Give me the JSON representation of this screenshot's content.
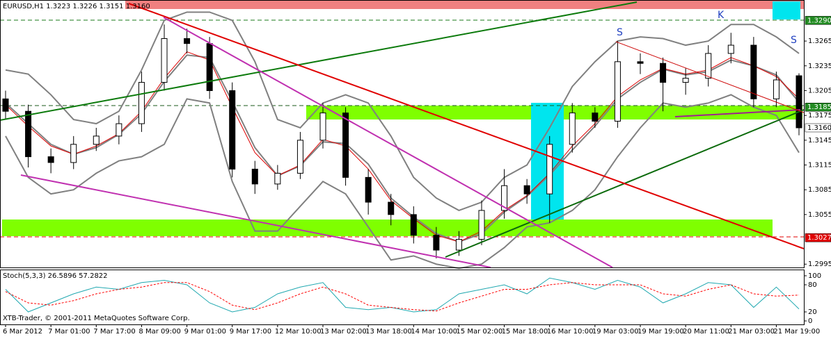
{
  "chart_data": {
    "type": "candlestick",
    "title": "EURUSD,H1  1.3223 1.3226 1.3151 1.3160",
    "categories": [
      "6 Mar 2012",
      null,
      "7 Mar 01:00",
      null,
      "7 Mar 17:00",
      null,
      "8 Mar 09:00",
      null,
      "9 Mar 01:00",
      null,
      "9 Mar 17:00",
      null,
      "12 Mar 10:00",
      null,
      "13 Mar 02:00",
      null,
      "13 Mar 18:00",
      null,
      "14 Mar 10:00",
      null,
      "15 Mar 02:00",
      null,
      "15 Mar 18:00",
      null,
      "16 Mar 10:00",
      null,
      "19 Mar 03:00",
      null,
      "19 Mar 19:00",
      null,
      "20 Mar 11:00",
      null,
      "21 Mar 03:00",
      null,
      "21 Mar 19:00",
      null
    ],
    "open": [
      1.3195,
      1.318,
      1.3125,
      1.3118,
      1.314,
      1.315,
      1.3165,
      1.3215,
      1.3268,
      1.3262,
      1.3205,
      1.311,
      1.3092,
      1.3105,
      1.3145,
      1.3178,
      1.31,
      1.307,
      1.3055,
      1.303,
      1.3012,
      1.3025,
      1.306,
      1.309,
      1.308,
      1.314,
      1.3178,
      1.3168,
      1.324,
      1.3238,
      1.3215,
      1.322,
      1.325,
      1.326,
      1.3195,
      1.3223
    ],
    "high": [
      1.3205,
      1.3188,
      1.3135,
      1.315,
      1.316,
      1.3175,
      1.3228,
      1.3285,
      1.328,
      1.327,
      1.3215,
      1.312,
      1.3115,
      1.3155,
      1.319,
      1.3185,
      1.311,
      1.308,
      1.3065,
      1.304,
      1.3035,
      1.3072,
      1.311,
      1.3098,
      1.315,
      1.319,
      1.3185,
      1.3265,
      1.325,
      1.3245,
      1.3232,
      1.326,
      1.3275,
      1.327,
      1.3228,
      1.3226
    ],
    "low": [
      1.317,
      1.3112,
      1.3105,
      1.311,
      1.3132,
      1.314,
      1.3155,
      1.3205,
      1.325,
      1.3195,
      1.31,
      1.308,
      1.3085,
      1.3098,
      1.3135,
      1.309,
      1.3055,
      1.3042,
      1.302,
      1.3002,
      1.3005,
      1.3018,
      1.305,
      1.3068,
      1.3045,
      1.313,
      1.316,
      1.316,
      1.3225,
      1.318,
      1.32,
      1.321,
      1.3238,
      1.3185,
      1.3185,
      1.3151
    ],
    "close": [
      1.318,
      1.3125,
      1.3118,
      1.314,
      1.315,
      1.3165,
      1.3215,
      1.3268,
      1.3262,
      1.3205,
      1.311,
      1.3092,
      1.3105,
      1.3145,
      1.3178,
      1.31,
      1.307,
      1.3055,
      1.303,
      1.3012,
      1.3025,
      1.306,
      1.309,
      1.308,
      1.314,
      1.3178,
      1.3168,
      1.324,
      1.3238,
      1.3215,
      1.322,
      1.325,
      1.326,
      1.3195,
      1.3218,
      1.316
    ],
    "series": [
      {
        "color": "#808080",
        "values": [
          1.323,
          1.3225,
          1.32,
          1.317,
          1.3165,
          1.318,
          1.323,
          1.329,
          1.33,
          1.33,
          1.329,
          1.324,
          1.317,
          1.316,
          1.319,
          1.32,
          1.319,
          1.315,
          1.31,
          1.3075,
          1.306,
          1.307,
          1.31,
          1.3115,
          1.316,
          1.321,
          1.324,
          1.3265,
          1.327,
          1.3268,
          1.326,
          1.3265,
          1.3285,
          1.3285,
          1.327,
          1.325
        ]
      },
      {
        "color": "#808080",
        "values": [
          1.319,
          1.3165,
          1.314,
          1.3128,
          1.3136,
          1.3152,
          1.3177,
          1.3216,
          1.3248,
          1.3245,
          1.3192,
          1.3136,
          1.3102,
          1.3114,
          1.3143,
          1.3141,
          1.3116,
          1.3075,
          1.3052,
          1.3032,
          1.3022,
          1.3032,
          1.3058,
          1.3077,
          1.3103,
          1.3133,
          1.3162,
          1.3195,
          1.3215,
          1.3231,
          1.3224,
          1.3228,
          1.3242,
          1.3235,
          1.3224,
          1.3191
        ]
      },
      {
        "color": "#808080",
        "values": [
          1.315,
          1.31,
          1.308,
          1.3085,
          1.3105,
          1.312,
          1.3125,
          1.314,
          1.3195,
          1.319,
          1.3095,
          1.3035,
          1.3035,
          1.3065,
          1.3095,
          1.308,
          1.304,
          1.3,
          1.3005,
          1.2995,
          1.299,
          1.2995,
          1.3015,
          1.304,
          1.3045,
          1.306,
          1.3085,
          1.3125,
          1.316,
          1.319,
          1.3185,
          1.319,
          1.32,
          1.3185,
          1.3175,
          1.313
        ]
      },
      {
        "color": "#dd0000",
        "values": [
          1.3188,
          1.3162,
          1.3138,
          1.3128,
          1.3138,
          1.3153,
          1.318,
          1.322,
          1.3252,
          1.3242,
          1.3185,
          1.313,
          1.3102,
          1.3115,
          1.3146,
          1.3138,
          1.311,
          1.3072,
          1.305,
          1.303,
          1.3022,
          1.3035,
          1.306,
          1.3078,
          1.3105,
          1.3138,
          1.3165,
          1.3198,
          1.3218,
          1.3232,
          1.3225,
          1.323,
          1.3245,
          1.3235,
          1.3222,
          1.3195
        ]
      }
    ],
    "ylim": [
      1.2991,
      1.3313
    ],
    "yticks": [
      1.3265,
      1.3235,
      1.3205,
      1.3175,
      1.3145,
      1.3115,
      1.3085,
      1.3055,
      1.2995
    ],
    "price_labels": [
      {
        "value": 1.329,
        "label": "1.3290",
        "color": "#228b22"
      },
      {
        "value": 1.3185,
        "label": "1.3185",
        "color": "#228b22"
      },
      {
        "value": 1.316,
        "label": "1.3160",
        "color": "#ffffff"
      },
      {
        "value": 1.3027,
        "label": "1.3027",
        "color": "#e00000"
      }
    ],
    "annotations": [
      "S",
      "K",
      "S"
    ],
    "footer": "XTB-Trader, © 2001-2011 MetaQuotes Software Corp.",
    "indicator": {
      "title": "Stoch(5,3,3) 26.5896 57.2822",
      "ylim": [
        0,
        100
      ],
      "yticks": [
        100,
        80,
        20,
        0
      ],
      "series": [
        {
          "color": "#20a8b0",
          "values": [
            70,
            20,
            40,
            60,
            75,
            70,
            85,
            90,
            80,
            40,
            20,
            30,
            60,
            75,
            85,
            30,
            25,
            30,
            20,
            25,
            60,
            70,
            80,
            60,
            95,
            85,
            70,
            90,
            75,
            40,
            60,
            85,
            80,
            30,
            75,
            26.5896
          ]
        },
        {
          "color": "#ff0000",
          "dashed": true,
          "values": [
            65,
            40,
            35,
            45,
            60,
            70,
            75,
            85,
            85,
            65,
            35,
            25,
            40,
            60,
            75,
            60,
            35,
            30,
            25,
            22,
            40,
            55,
            70,
            70,
            80,
            85,
            80,
            80,
            80,
            60,
            55,
            70,
            80,
            60,
            55,
            57.2822
          ]
        }
      ]
    }
  }
}
